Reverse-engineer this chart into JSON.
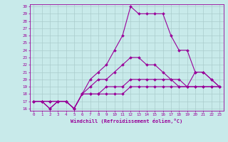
{
  "title": "",
  "xlabel": "Windchill (Refroidissement éolien,°C)",
  "ylabel": "",
  "background_color": "#c8eaea",
  "line_color": "#990099",
  "grid_color": "#aacccc",
  "xlim": [
    -0.5,
    23.5
  ],
  "ylim": [
    15.7,
    30.3
  ],
  "xticks": [
    0,
    1,
    2,
    3,
    4,
    5,
    6,
    7,
    8,
    9,
    10,
    11,
    12,
    13,
    14,
    15,
    16,
    17,
    18,
    19,
    20,
    21,
    22,
    23
  ],
  "yticks": [
    16,
    17,
    18,
    19,
    20,
    21,
    22,
    23,
    24,
    25,
    26,
    27,
    28,
    29,
    30
  ],
  "lines": [
    {
      "x": [
        0,
        1,
        2,
        3,
        4,
        5,
        6,
        7,
        8,
        9,
        10,
        11,
        12,
        13,
        14,
        15,
        16,
        17,
        18,
        19,
        20,
        21,
        22,
        23
      ],
      "y": [
        17,
        17,
        16,
        17,
        17,
        16,
        18,
        20,
        21,
        22,
        24,
        26,
        30,
        29,
        29,
        29,
        29,
        26,
        24,
        24,
        21,
        21,
        20,
        19
      ]
    },
    {
      "x": [
        0,
        1,
        2,
        3,
        4,
        5,
        6,
        7,
        8,
        9,
        10,
        11,
        12,
        13,
        14,
        15,
        16,
        17,
        18,
        19,
        20,
        21,
        22,
        23
      ],
      "y": [
        17,
        17,
        16,
        17,
        17,
        16,
        18,
        19,
        20,
        20,
        21,
        22,
        23,
        23,
        22,
        22,
        21,
        20,
        20,
        19,
        21,
        21,
        20,
        19
      ]
    },
    {
      "x": [
        0,
        1,
        2,
        3,
        4,
        5,
        6,
        7,
        8,
        9,
        10,
        11,
        12,
        13,
        14,
        15,
        16,
        17,
        18,
        19,
        20,
        21,
        22,
        23
      ],
      "y": [
        17,
        17,
        17,
        17,
        17,
        16,
        18,
        18,
        18,
        19,
        19,
        19,
        20,
        20,
        20,
        20,
        20,
        20,
        19,
        19,
        19,
        19,
        19,
        19
      ]
    },
    {
      "x": [
        0,
        1,
        2,
        3,
        4,
        5,
        6,
        7,
        8,
        9,
        10,
        11,
        12,
        13,
        14,
        15,
        16,
        17,
        18,
        19,
        20,
        21,
        22,
        23
      ],
      "y": [
        17,
        17,
        17,
        17,
        17,
        16,
        18,
        18,
        18,
        18,
        18,
        18,
        19,
        19,
        19,
        19,
        19,
        19,
        19,
        19,
        19,
        19,
        19,
        19
      ]
    }
  ],
  "tick_fontsize": 4.2,
  "xlabel_fontsize": 5.0,
  "marker_size": 2.0,
  "line_width": 0.8
}
